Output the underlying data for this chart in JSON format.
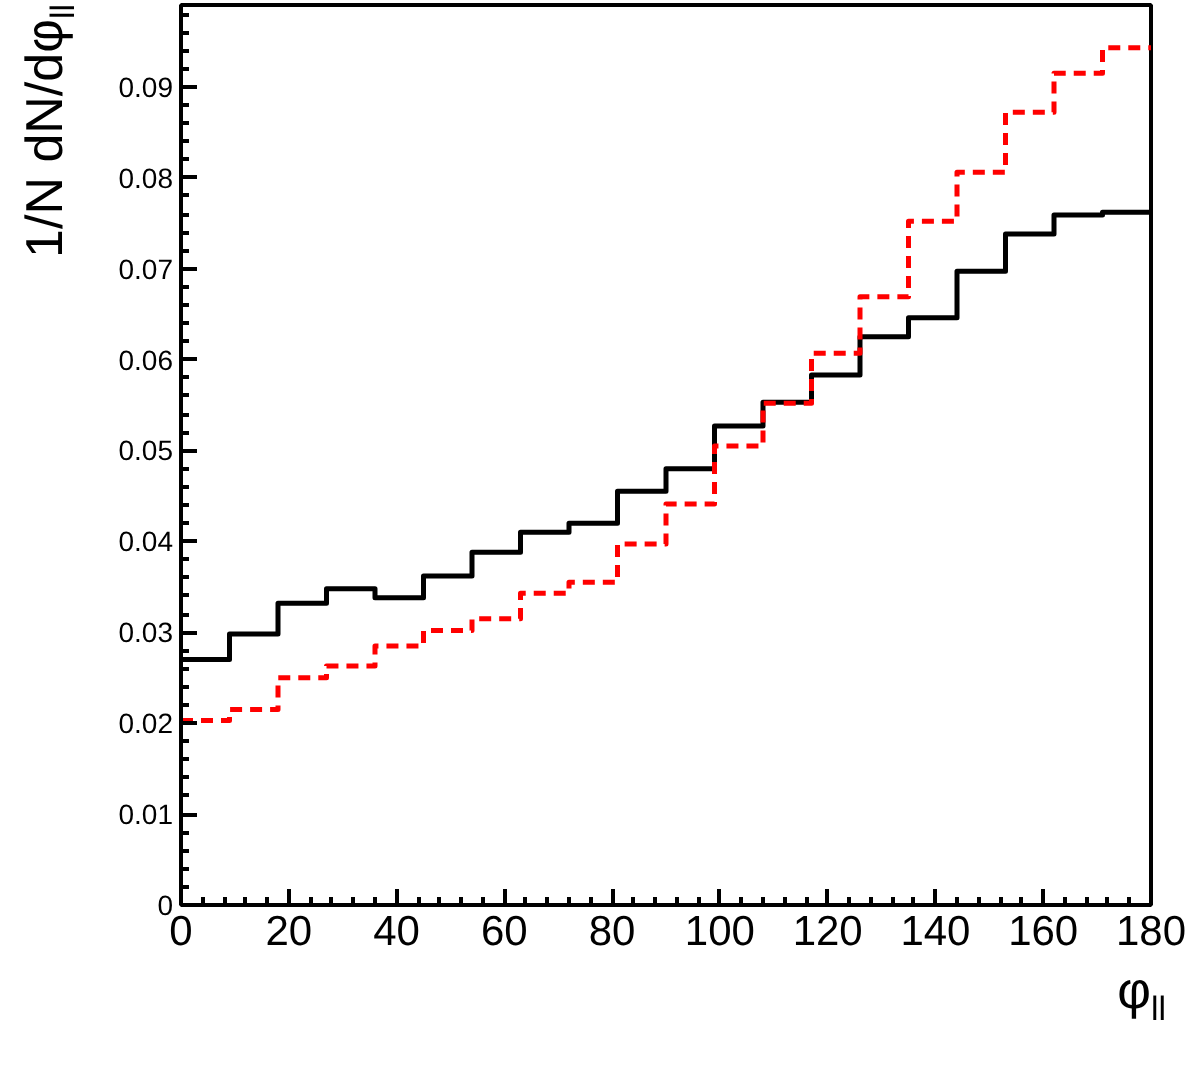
{
  "chart_data": {
    "type": "histogram",
    "xlabel": "φ$_{ll}$",
    "ylabel": "1/N dN/dφ$_{ll}$",
    "bins": [
      0,
      9,
      18,
      27,
      36,
      45,
      54,
      63,
      72,
      81,
      90,
      99,
      108,
      117,
      126,
      135,
      144,
      153,
      162,
      171,
      180
    ],
    "series": [
      {
        "color": "#000000",
        "line_style": "solid",
        "values": [
          0.027,
          0.0298,
          0.0332,
          0.0348,
          0.0338,
          0.0362,
          0.0388,
          0.041,
          0.042,
          0.0455,
          0.048,
          0.0527,
          0.0553,
          0.0583,
          0.0625,
          0.0646,
          0.0697,
          0.0738,
          0.0759,
          0.0762
        ]
      },
      {
        "color": "#ff0000",
        "line_style": "dashed",
        "values": [
          0.0203,
          0.0215,
          0.025,
          0.0263,
          0.0285,
          0.0302,
          0.0315,
          0.0343,
          0.0355,
          0.0397,
          0.0441,
          0.0505,
          0.0552,
          0.0607,
          0.0669,
          0.0752,
          0.0806,
          0.0872,
          0.0915,
          0.0943
        ]
      }
    ],
    "xlim": [
      0,
      180
    ],
    "ylim": [
      0,
      0.099
    ],
    "xticks": [
      0,
      20,
      40,
      60,
      80,
      100,
      120,
      140,
      160,
      180
    ],
    "yticks": [
      0,
      0.01,
      0.02,
      0.03,
      0.04,
      0.05,
      0.06,
      0.07,
      0.08,
      0.09
    ],
    "grid": false
  }
}
